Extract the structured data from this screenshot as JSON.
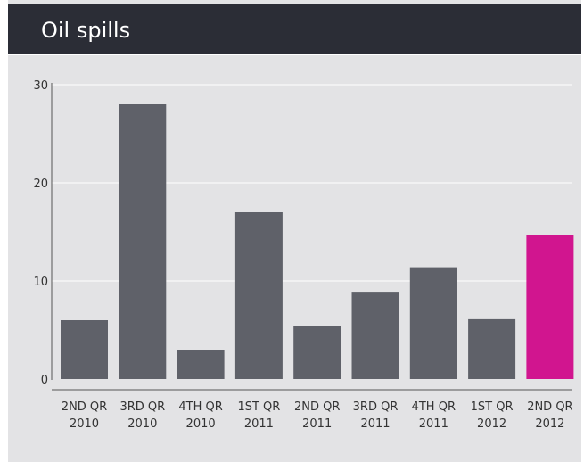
{
  "title": "Oil spills",
  "colors": {
    "bar": "#5f6169",
    "highlight": "#d1158f",
    "grid": "#ffffff",
    "axis": "#555555",
    "header": "#2b2d36",
    "background": "#e3e3e5"
  },
  "chart_data": {
    "type": "bar",
    "title": "Oil spills",
    "categories": [
      [
        "2ND QR",
        "2010"
      ],
      [
        "3RD QR",
        "2010"
      ],
      [
        "4TH QR",
        "2010"
      ],
      [
        "1ST QR",
        "2011"
      ],
      [
        "2ND QR",
        "2011"
      ],
      [
        "3RD QR",
        "2011"
      ],
      [
        "4TH QR",
        "2011"
      ],
      [
        "1ST QR",
        "2012"
      ],
      [
        "2ND QR",
        "2012"
      ]
    ],
    "values": [
      6,
      28,
      3,
      17,
      5.4,
      8.9,
      11.4,
      6.1,
      14.7
    ],
    "highlight_index": 8,
    "yticks": [
      0,
      10,
      20,
      30
    ],
    "ylim": [
      0,
      30
    ],
    "grid": true,
    "xlabel": "",
    "ylabel": ""
  }
}
